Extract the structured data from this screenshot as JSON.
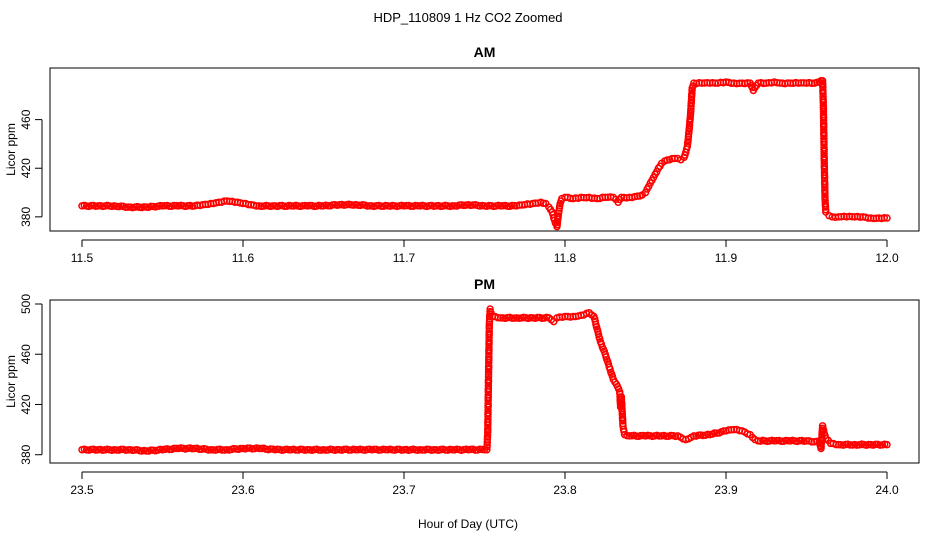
{
  "figure": {
    "title": "HDP_110809  1 Hz CO2 Zoomed",
    "xlabel": "Hour of Day (UTC)"
  },
  "chart_data": [
    {
      "type": "scatter",
      "title": "AM",
      "xlabel": "Hour of Day (UTC)",
      "ylabel": "Licor ppm",
      "xlim": [
        11.5,
        12.0
      ],
      "ylim": [
        370,
        500
      ],
      "xticks": [
        "11.5",
        "11.6",
        "11.7",
        "11.8",
        "11.9",
        "12.0"
      ],
      "yticks": [
        "380",
        "420",
        "460"
      ],
      "grid": false,
      "marker": "open-circle",
      "color": "#ff0000",
      "series": [
        {
          "points": [
            [
              11.5,
              389
            ],
            [
              11.51,
              389
            ],
            [
              11.52,
              389
            ],
            [
              11.53,
              388
            ],
            [
              11.54,
              388
            ],
            [
              11.55,
              389
            ],
            [
              11.56,
              389
            ],
            [
              11.57,
              389
            ],
            [
              11.575,
              390
            ],
            [
              11.58,
              391
            ],
            [
              11.585,
              392
            ],
            [
              11.59,
              393
            ],
            [
              11.595,
              392
            ],
            [
              11.6,
              391
            ],
            [
              11.605,
              390
            ],
            [
              11.61,
              389
            ],
            [
              11.62,
              389
            ],
            [
              11.63,
              389
            ],
            [
              11.64,
              389
            ],
            [
              11.65,
              389
            ],
            [
              11.66,
              390
            ],
            [
              11.67,
              390
            ],
            [
              11.68,
              389
            ],
            [
              11.69,
              389
            ],
            [
              11.7,
              389
            ],
            [
              11.71,
              389
            ],
            [
              11.72,
              389
            ],
            [
              11.73,
              389
            ],
            [
              11.74,
              390
            ],
            [
              11.75,
              389
            ],
            [
              11.76,
              389
            ],
            [
              11.77,
              389
            ],
            [
              11.775,
              390
            ],
            [
              11.78,
              391
            ],
            [
              11.785,
              392
            ],
            [
              11.788,
              391
            ],
            [
              11.79,
              388
            ],
            [
              11.792,
              384
            ],
            [
              11.793,
              379
            ],
            [
              11.794,
              375
            ],
            [
              11.795,
              372
            ],
            [
              11.796,
              383
            ],
            [
              11.797,
              391
            ],
            [
              11.798,
              395
            ],
            [
              11.8,
              396
            ],
            [
              11.805,
              395
            ],
            [
              11.81,
              396
            ],
            [
              11.815,
              396
            ],
            [
              11.82,
              395
            ],
            [
              11.825,
              396
            ],
            [
              11.83,
              396
            ],
            [
              11.833,
              392
            ],
            [
              11.835,
              396
            ],
            [
              11.84,
              396
            ],
            [
              11.845,
              397
            ],
            [
              11.848,
              398
            ],
            [
              11.85,
              400
            ],
            [
              11.852,
              405
            ],
            [
              11.854,
              410
            ],
            [
              11.856,
              415
            ],
            [
              11.858,
              420
            ],
            [
              11.86,
              424
            ],
            [
              11.862,
              426
            ],
            [
              11.865,
              427
            ],
            [
              11.868,
              428
            ],
            [
              11.87,
              428
            ],
            [
              11.872,
              427
            ],
            [
              11.874,
              429
            ],
            [
              11.875,
              433
            ],
            [
              11.876,
              438
            ],
            [
              11.877,
              450
            ],
            [
              11.878,
              465
            ],
            [
              11.879,
              486
            ],
            [
              11.88,
              490
            ],
            [
              11.885,
              490
            ],
            [
              11.89,
              490
            ],
            [
              11.895,
              490
            ],
            [
              11.9,
              491
            ],
            [
              11.905,
              490
            ],
            [
              11.91,
              490
            ],
            [
              11.915,
              490
            ],
            [
              11.917,
              484
            ],
            [
              11.92,
              490
            ],
            [
              11.925,
              490
            ],
            [
              11.93,
              491
            ],
            [
              11.935,
              490
            ],
            [
              11.94,
              490
            ],
            [
              11.945,
              490
            ],
            [
              11.95,
              490
            ],
            [
              11.955,
              490
            ],
            [
              11.958,
              491
            ],
            [
              11.959,
              492
            ],
            [
              11.96,
              492
            ],
            [
              11.9605,
              470
            ],
            [
              11.961,
              428
            ],
            [
              11.9615,
              395
            ],
            [
              11.962,
              384
            ],
            [
              11.964,
              381
            ],
            [
              11.966,
              380
            ],
            [
              11.97,
              380
            ],
            [
              11.975,
              380
            ],
            [
              11.98,
              380
            ],
            [
              11.985,
              380
            ],
            [
              11.99,
              379
            ],
            [
              11.995,
              379
            ],
            [
              12.0,
              379
            ]
          ]
        }
      ]
    },
    {
      "type": "scatter",
      "title": "PM",
      "xlabel": "Hour of Day (UTC)",
      "ylabel": "Licor ppm",
      "xlim": [
        23.5,
        24.0
      ],
      "ylim": [
        375,
        500
      ],
      "xticks": [
        "23.5",
        "23.6",
        "23.7",
        "23.8",
        "23.9",
        "24.0"
      ],
      "yticks": [
        "380",
        "420",
        "460",
        "500"
      ],
      "grid": false,
      "marker": "open-circle",
      "color": "#ff0000",
      "series": [
        {
          "points": [
            [
              23.5,
              384
            ],
            [
              23.51,
              384
            ],
            [
              23.52,
              384
            ],
            [
              23.53,
              384
            ],
            [
              23.54,
              383
            ],
            [
              23.55,
              384
            ],
            [
              23.56,
              385
            ],
            [
              23.57,
              385
            ],
            [
              23.58,
              384
            ],
            [
              23.59,
              384
            ],
            [
              23.6,
              385
            ],
            [
              23.61,
              385
            ],
            [
              23.62,
              384
            ],
            [
              23.63,
              384
            ],
            [
              23.64,
              384
            ],
            [
              23.65,
              384
            ],
            [
              23.66,
              384
            ],
            [
              23.67,
              384
            ],
            [
              23.68,
              384
            ],
            [
              23.69,
              384
            ],
            [
              23.7,
              384
            ],
            [
              23.71,
              384
            ],
            [
              23.72,
              384
            ],
            [
              23.73,
              384
            ],
            [
              23.74,
              384
            ],
            [
              23.75,
              384
            ],
            [
              23.7515,
              384
            ],
            [
              23.752,
              398
            ],
            [
              23.7525,
              442
            ],
            [
              23.753,
              484
            ],
            [
              23.7535,
              496
            ],
            [
              23.754,
              493
            ],
            [
              23.755,
              490
            ],
            [
              23.76,
              489
            ],
            [
              23.77,
              489
            ],
            [
              23.78,
              489
            ],
            [
              23.79,
              489
            ],
            [
              23.793,
              486
            ],
            [
              23.795,
              489
            ],
            [
              23.8,
              490
            ],
            [
              23.805,
              490
            ],
            [
              23.81,
              491
            ],
            [
              23.815,
              493
            ],
            [
              23.818,
              490
            ],
            [
              23.82,
              480
            ],
            [
              23.822,
              470
            ],
            [
              23.825,
              460
            ],
            [
              23.828,
              448
            ],
            [
              23.83,
              440
            ],
            [
              23.832,
              436
            ],
            [
              23.834,
              430
            ],
            [
              23.8345,
              418
            ],
            [
              23.835,
              426
            ],
            [
              23.836,
              403
            ],
            [
              23.837,
              396
            ],
            [
              23.84,
              395
            ],
            [
              23.85,
              395
            ],
            [
              23.86,
              395
            ],
            [
              23.87,
              395
            ],
            [
              23.875,
              392
            ],
            [
              23.88,
              395
            ],
            [
              23.89,
              396
            ],
            [
              23.9,
              399
            ],
            [
              23.905,
              400
            ],
            [
              23.91,
              399
            ],
            [
              23.915,
              396
            ],
            [
              23.918,
              392
            ],
            [
              23.92,
              391
            ],
            [
              23.93,
              391
            ],
            [
              23.94,
              391
            ],
            [
              23.95,
              391
            ],
            [
              23.958,
              390
            ],
            [
              23.959,
              385
            ],
            [
              23.96,
              403
            ],
            [
              23.961,
              397
            ],
            [
              23.962,
              393
            ],
            [
              23.965,
              389
            ],
            [
              23.97,
              388
            ],
            [
              23.98,
              388
            ],
            [
              23.99,
              388
            ],
            [
              24.0,
              388
            ]
          ]
        }
      ]
    }
  ]
}
